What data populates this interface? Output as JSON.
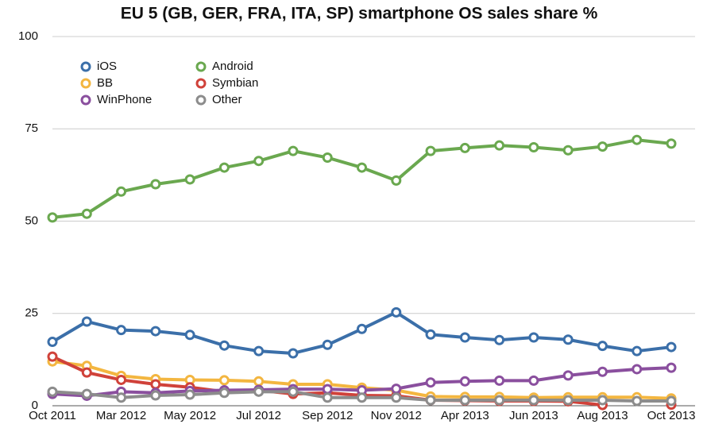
{
  "chart_data": {
    "type": "line",
    "title": "EU 5 (GB, GER, FRA, ITA, SP) smartphone OS sales share %",
    "categories": [
      "Oct 2011",
      null,
      "Mar 2012",
      null,
      "May 2012",
      null,
      "Jul 2012",
      null,
      "Sep 2012",
      null,
      "Nov 2012",
      null,
      "Apr 2013",
      null,
      "Jun 2013",
      null,
      "Aug 2013",
      null,
      "Oct 2013"
    ],
    "series": [
      {
        "name": "iOS",
        "color": "#3b6fa9",
        "values": [
          17.3,
          22.8,
          20.5,
          20.2,
          19.2,
          16.3,
          14.8,
          14.2,
          16.5,
          20.8,
          25.3,
          19.3,
          18.5,
          17.8,
          18.5,
          17.9,
          16.2,
          14.8,
          15.9
        ]
      },
      {
        "name": "Android",
        "color": "#6aa84f",
        "values": [
          51,
          52,
          58,
          60,
          61.3,
          64.5,
          66.3,
          69,
          67.2,
          64.5,
          61,
          69,
          69.8,
          70.5,
          70,
          69.2,
          70.2,
          72,
          71
        ]
      },
      {
        "name": "BB",
        "color": "#f3b640",
        "values": [
          12,
          10.8,
          8.1,
          7.2,
          7,
          6.9,
          6.6,
          5.8,
          5.8,
          4.9,
          4.2,
          2.5,
          2.4,
          2.4,
          2.2,
          2.3,
          2.3,
          2.3,
          2
        ]
      },
      {
        "name": "Symbian",
        "color": "#d0423a",
        "values": [
          13.3,
          9,
          7,
          5.8,
          5,
          3.8,
          4.2,
          3.2,
          3.5,
          2.8,
          2.7,
          1.5,
          1.4,
          1.3,
          1.3,
          1.2,
          0.2,
          null,
          0.3
        ]
      },
      {
        "name": "WinPhone",
        "color": "#8a4f9e",
        "values": [
          3.2,
          2.7,
          3.8,
          3.5,
          4,
          4.2,
          4.3,
          4.5,
          4.5,
          4.2,
          4.6,
          6.3,
          6.6,
          6.8,
          6.8,
          8.2,
          9.2,
          9.9,
          10.3
        ]
      },
      {
        "name": "Other",
        "color": "#8c8c8c",
        "values": [
          3.8,
          3.2,
          2.2,
          2.8,
          3,
          3.5,
          3.8,
          3.8,
          2.2,
          2.2,
          2.2,
          1.5,
          1.5,
          1.5,
          1.5,
          1.5,
          1.5,
          1.3,
          1.3
        ]
      }
    ],
    "ylim": [
      0,
      100
    ],
    "yticks": [
      0,
      25,
      50,
      75,
      100
    ],
    "grid": true,
    "legend": "upper-left"
  }
}
